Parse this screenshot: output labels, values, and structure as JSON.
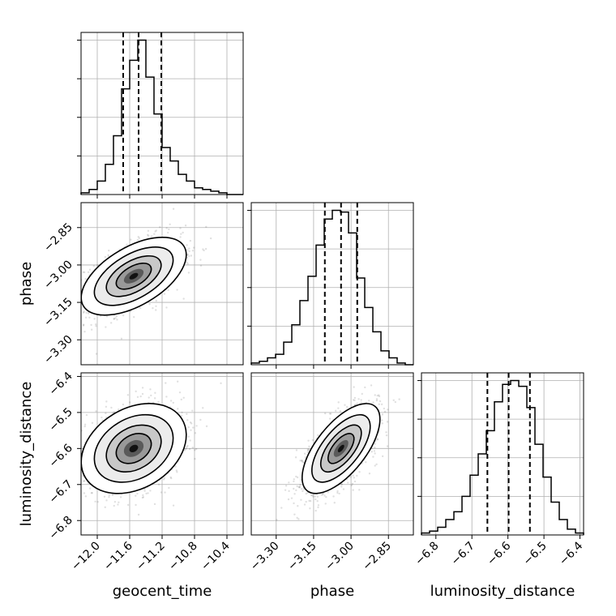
{
  "chart_data": {
    "type": "corner",
    "parameters": [
      "geocent_time",
      "phase",
      "luminosity_distance"
    ],
    "ranges": {
      "geocent_time": [
        -12.2,
        -10.2
      ],
      "phase": [
        -3.4,
        -2.75
      ],
      "luminosity_distance": [
        -6.84,
        -6.39
      ]
    },
    "ticks": {
      "geocent_time": [
        -12.0,
        -11.6,
        -11.2,
        -10.8,
        -10.4
      ],
      "phase": [
        -3.3,
        -3.15,
        -3.0,
        -2.85
      ],
      "luminosity_distance": [
        -6.8,
        -6.7,
        -6.6,
        -6.5,
        -6.4
      ]
    },
    "tick_labels": {
      "geocent_time": [
        "−12.0",
        "−11.6",
        "−11.2",
        "−10.8",
        "−10.4"
      ],
      "phase": [
        "−3.30",
        "−3.15",
        "−3.00",
        "−2.85"
      ],
      "luminosity_distance": [
        "−6.8",
        "−6.7",
        "−6.6",
        "−6.5",
        "−6.4"
      ]
    },
    "quantiles": {
      "geocent_time": [
        -11.68,
        -11.49,
        -11.21
      ],
      "phase": [
        -3.105,
        -3.04,
        -2.975
      ],
      "luminosity_distance": [
        -6.657,
        -6.598,
        -6.539
      ]
    },
    "histograms": {
      "geocent_time": {
        "bin_edges": [
          -12.2,
          -12.1,
          -12.0,
          -11.9,
          -11.8,
          -11.7,
          -11.6,
          -11.5,
          -11.4,
          -11.3,
          -11.2,
          -11.1,
          -11.0,
          -10.9,
          -10.8,
          -10.7,
          -10.6,
          -10.5,
          -10.4,
          -10.3,
          -10.2
        ],
        "counts": [
          1,
          3,
          8,
          18,
          35,
          63,
          80,
          92,
          70,
          48,
          28,
          20,
          12,
          8,
          4,
          3,
          2,
          1,
          0,
          0
        ]
      },
      "phase": {
        "bin_edges": [
          -3.4,
          -3.3675,
          -3.335,
          -3.3025,
          -3.27,
          -3.2375,
          -3.205,
          -3.1725,
          -3.14,
          -3.1075,
          -3.075,
          -3.0425,
          -3.01,
          -2.9775,
          -2.945,
          -2.9125,
          -2.88,
          -2.8475,
          -2.815,
          -2.7825,
          -2.75
        ],
        "counts": [
          1,
          2,
          4,
          6,
          13,
          23,
          37,
          51,
          69,
          84,
          89,
          88,
          76,
          50,
          33,
          19,
          8,
          4,
          1,
          0
        ]
      },
      "luminosity_distance": {
        "bin_edges": [
          -6.84,
          -6.8175,
          -6.795,
          -6.7725,
          -6.75,
          -6.7275,
          -6.705,
          -6.6825,
          -6.66,
          -6.6375,
          -6.615,
          -6.5925,
          -6.57,
          -6.5475,
          -6.525,
          -6.5025,
          -6.48,
          -6.4575,
          -6.435,
          -6.4125,
          -6.39
        ],
        "counts": [
          1,
          2,
          4,
          8,
          12,
          20,
          31,
          42,
          54,
          69,
          78,
          80,
          77,
          66,
          47,
          30,
          17,
          8,
          3,
          1
        ]
      }
    },
    "joint": [
      {
        "x": "geocent_time",
        "y": "phase",
        "mean": [
          -11.55,
          -3.045
        ],
        "sd": [
          0.27,
          0.065
        ],
        "corr": 0.55
      },
      {
        "x": "geocent_time",
        "y": "luminosity_distance",
        "mean": [
          -11.55,
          -6.6
        ],
        "sd": [
          0.27,
          0.052
        ],
        "corr": 0.3
      },
      {
        "x": "phase",
        "y": "luminosity_distance",
        "mean": [
          -3.04,
          -6.6
        ],
        "sd": [
          0.065,
          0.052
        ],
        "corr": 0.65
      }
    ],
    "grid": true,
    "legend": "none"
  }
}
